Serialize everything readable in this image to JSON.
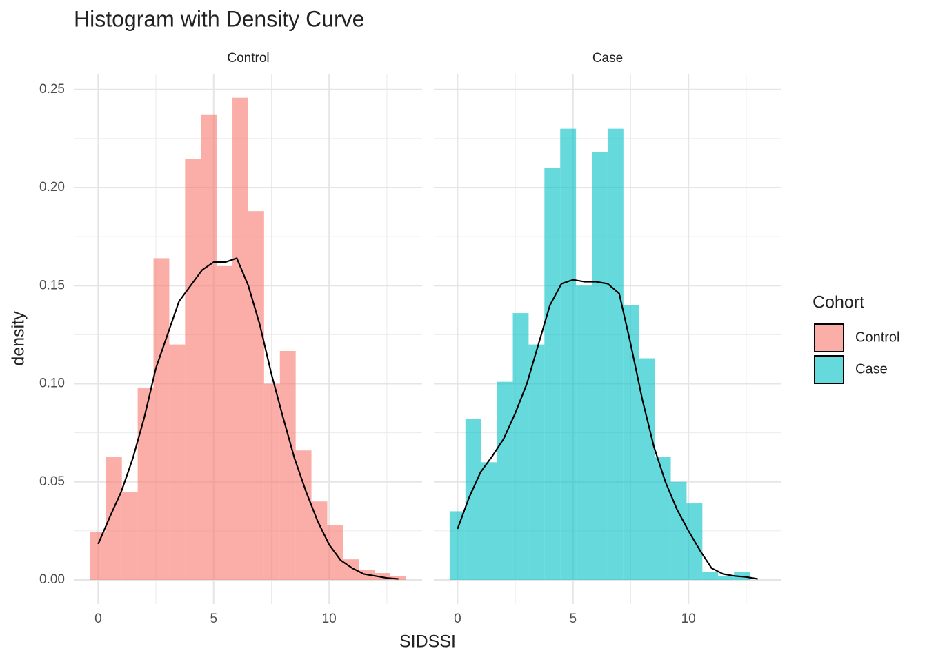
{
  "chart_data": {
    "type": "histogram",
    "title": "Histogram with Density Curve",
    "x_label": "SIDSSI",
    "y_label": "density",
    "legend_title": "Cohort",
    "legend_position": "right",
    "grid": true,
    "xlim": [
      -1.026,
      14.026
    ],
    "ylim": [
      -0.0123,
      0.258
    ],
    "xticks": [
      0,
      5,
      10
    ],
    "yticks": [
      {
        "value": 0,
        "label": "0.00"
      },
      {
        "value": 0.05,
        "label": "0.05"
      },
      {
        "value": 0.1,
        "label": "0.10"
      },
      {
        "value": 0.15,
        "label": "0.15"
      },
      {
        "value": 0.2,
        "label": "0.20"
      },
      {
        "value": 0.25,
        "label": "0.25"
      }
    ],
    "x_minor_grid": [
      2.5,
      7.5,
      12.5
    ],
    "y_minor_grid": [
      0.025,
      0.075,
      0.125,
      0.175,
      0.225
    ],
    "bins": [
      -0.342,
      0.342,
      1.026,
      1.71,
      2.394,
      3.078,
      3.762,
      4.446,
      5.13,
      5.814,
      6.498,
      7.182,
      7.866,
      8.55,
      9.234,
      9.918,
      10.602,
      11.286,
      11.97,
      12.654,
      13.338
    ],
    "facets": [
      {
        "name": "Control",
        "color": "#F8766D",
        "values": [
          0.0243,
          0.0626,
          0.045,
          0.0977,
          0.164,
          0.12,
          0.2145,
          0.237,
          0.16,
          0.2458,
          0.188,
          0.1,
          0.1167,
          0.066,
          0.04,
          0.0278,
          0.0105,
          0.005,
          0.0035,
          0.0018
        ],
        "density": {
          "x": [
            0,
            0.5,
            1,
            1.5,
            2,
            2.5,
            3,
            3.5,
            4,
            4.5,
            5,
            5.5,
            6,
            6.5,
            7,
            7.5,
            8,
            8.5,
            9,
            9.5,
            10,
            10.5,
            11,
            11.5,
            12,
            12.5,
            13
          ],
          "y": [
            0.0183,
            0.032,
            0.045,
            0.062,
            0.083,
            0.108,
            0.125,
            0.142,
            0.15,
            0.158,
            0.162,
            0.162,
            0.164,
            0.15,
            0.13,
            0.105,
            0.083,
            0.062,
            0.045,
            0.03,
            0.018,
            0.01,
            0.006,
            0.003,
            0.002,
            0.001,
            0.0005
          ]
        }
      },
      {
        "name": "Case",
        "color": "#00BFC4",
        "values": [
          0.035,
          0.082,
          0.06,
          0.101,
          0.136,
          0.12,
          0.21,
          0.23,
          0.15,
          0.218,
          0.23,
          0.14,
          0.113,
          0.0626,
          0.05,
          0.039,
          0.0039,
          0.002,
          0.0039,
          0
        ],
        "density": {
          "x": [
            0,
            0.5,
            1,
            1.5,
            2,
            2.5,
            3,
            3.5,
            4,
            4.5,
            5,
            5.5,
            6,
            6.5,
            7,
            7.5,
            8,
            8.5,
            9,
            9.5,
            10,
            10.5,
            11,
            11.5,
            12,
            12.5,
            13
          ],
          "y": [
            0.026,
            0.042,
            0.055,
            0.063,
            0.072,
            0.085,
            0.1,
            0.12,
            0.14,
            0.151,
            0.153,
            0.152,
            0.152,
            0.151,
            0.146,
            0.12,
            0.092,
            0.068,
            0.05,
            0.036,
            0.025,
            0.015,
            0.006,
            0.003,
            0.002,
            0.0015,
            0.0005
          ]
        }
      }
    ]
  }
}
